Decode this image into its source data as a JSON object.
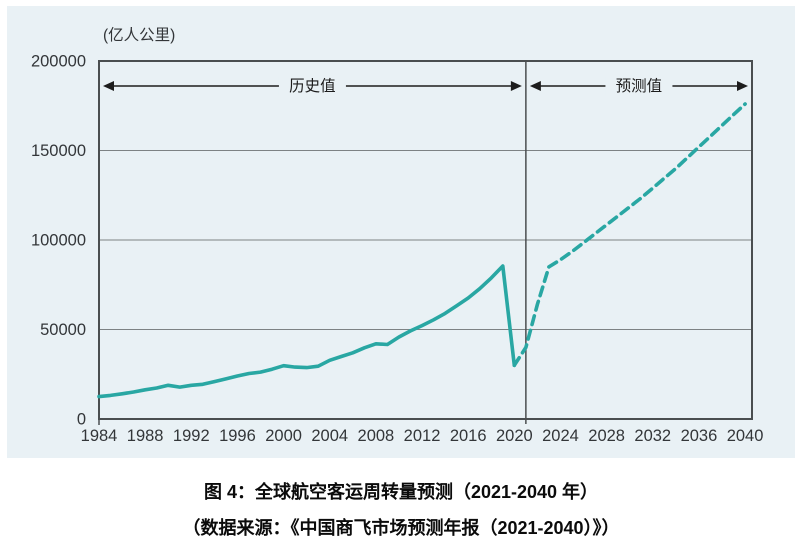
{
  "colors": {
    "line_teal": "#29a7a3",
    "panel_bg": "#e9f1f5",
    "axis_gray": "#4a4e50",
    "text_dark": "#333639"
  },
  "chart_data": {
    "type": "line",
    "title": "图 4：全球航空客运周转量预测（2021-2040 年）",
    "source": "（数据来源：《中国商飞市场预测年报（2021-2040）》）",
    "unit_label": "(亿人公里)",
    "ylabel": "亿人公里",
    "ylim": [
      0,
      200000
    ],
    "xlim": [
      1984,
      2040.6
    ],
    "grid": "horizontal",
    "ytick_values": [
      0,
      50000,
      100000,
      150000,
      200000
    ],
    "ytick_labels": [
      "0",
      "50000",
      "100000",
      "150000",
      "200000"
    ],
    "xticks": [
      1984,
      1988,
      1992,
      1996,
      2000,
      2004,
      2008,
      2012,
      2016,
      2020,
      2024,
      2028,
      2032,
      2036,
      2040
    ],
    "divider_year": 2021,
    "regions": [
      {
        "label": "历史值",
        "from": 1984,
        "to": 2021
      },
      {
        "label": "预测值",
        "from": 2021,
        "to": 2040.6
      }
    ],
    "series": [
      {
        "name": "历史值",
        "style": "solid",
        "color": "#29a7a3",
        "x": [
          1984,
          1985,
          1986,
          1987,
          1988,
          1989,
          1990,
          1991,
          1992,
          1993,
          1994,
          1995,
          1996,
          1997,
          1998,
          1999,
          2000,
          2001,
          2002,
          2003,
          2004,
          2005,
          2006,
          2007,
          2008,
          2009,
          2010,
          2011,
          2012,
          2013,
          2014,
          2015,
          2016,
          2017,
          2018,
          2019,
          2020
        ],
        "y": [
          12500,
          13200,
          14100,
          15100,
          16300,
          17300,
          18800,
          17800,
          18800,
          19400,
          20900,
          22400,
          24000,
          25400,
          26200,
          27800,
          29800,
          29000,
          28700,
          29500,
          32800,
          34900,
          37000,
          39800,
          42000,
          41600,
          45800,
          49200,
          52200,
          55400,
          59000,
          63300,
          67600,
          72800,
          78800,
          85500,
          30000
        ]
      },
      {
        "name": "预测值",
        "style": "dashed",
        "color": "#29a7a3",
        "x": [
          2020,
          2021,
          2022,
          2023,
          2024,
          2025,
          2026,
          2027,
          2028,
          2029,
          2030,
          2031,
          2032,
          2033,
          2034,
          2035,
          2036,
          2037,
          2038,
          2039,
          2040
        ],
        "y": [
          30000,
          40000,
          64000,
          85000,
          89000,
          93500,
          98500,
          103500,
          108500,
          113500,
          118500,
          123500,
          129000,
          134500,
          140000,
          146000,
          152000,
          158000,
          164000,
          170000,
          176000
        ]
      }
    ]
  }
}
